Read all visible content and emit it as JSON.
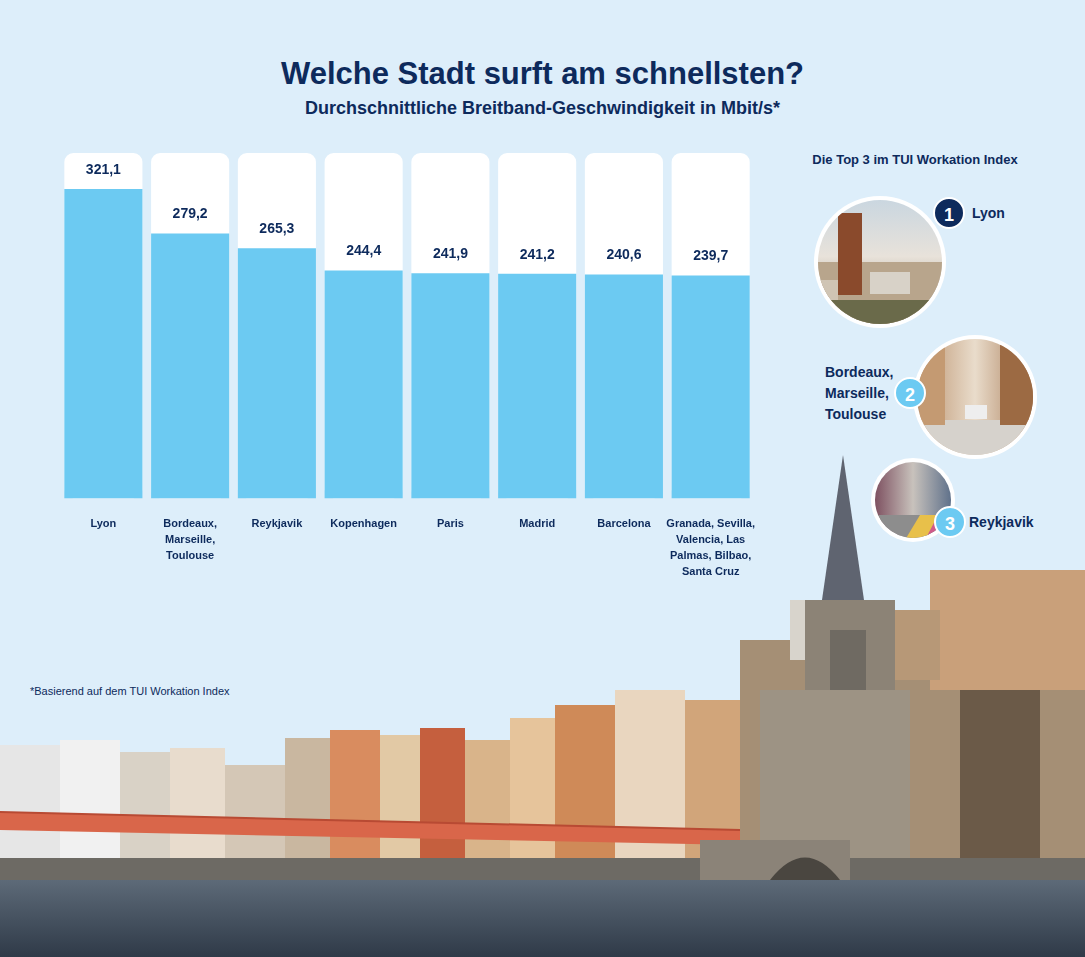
{
  "chart_data": {
    "type": "bar",
    "title": "Welche Stadt surft am schnellsten?",
    "subtitle": "Durchschnittliche Breitband-Geschwindigkeit in Mbit/s*",
    "categories": [
      "Lyon",
      "Bordeaux, Marseille, Toulouse",
      "Reykjavik",
      "Kopenhagen",
      "Paris",
      "Madrid",
      "Barcelona",
      "Granada, Sevilla, Valencia, Las Palmas, Bilbao, Santa Cruz"
    ],
    "values": [
      321.1,
      279.2,
      265.3,
      244.4,
      241.9,
      241.2,
      240.6,
      239.7
    ],
    "value_labels": [
      "321,1",
      "279,2",
      "265,3",
      "244,4",
      "241,9",
      "241,2",
      "240,6",
      "239,7"
    ],
    "color": "#6ccaf2",
    "ylim": [
      30,
      355
    ],
    "grid": false,
    "tick_labels": "x",
    "data_labels": true,
    "legend": false
  },
  "footnote": "*Basierend auf dem TUI Workation Index",
  "top3": {
    "title": "Die Top 3 im TUI Workation Index",
    "items": [
      {
        "rank": 1,
        "label": "Lyon"
      },
      {
        "rank": 2,
        "label": "Bordeaux, Marseille, Toulouse"
      },
      {
        "rank": 3,
        "label": "Reykjavik"
      }
    ]
  }
}
